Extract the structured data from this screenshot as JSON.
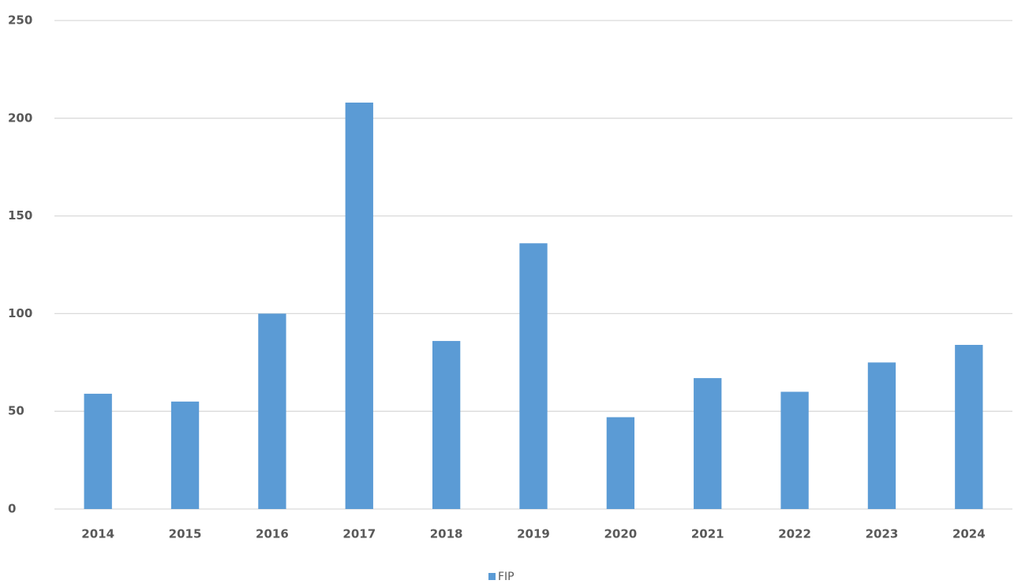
{
  "chart_data": {
    "type": "bar",
    "categories": [
      "2014",
      "2015",
      "2016",
      "2017",
      "2018",
      "2019",
      "2020",
      "2021",
      "2022",
      "2023",
      "2024"
    ],
    "series": [
      {
        "name": "FIP",
        "color": "#5b9bd5",
        "values": [
          59,
          55,
          100,
          208,
          86,
          136,
          47,
          67,
          60,
          75,
          84
        ]
      }
    ],
    "ylim": [
      0,
      250
    ],
    "yticks": [
      0,
      50,
      100,
      150,
      200,
      250
    ],
    "grid": true,
    "legend": "bottom"
  }
}
